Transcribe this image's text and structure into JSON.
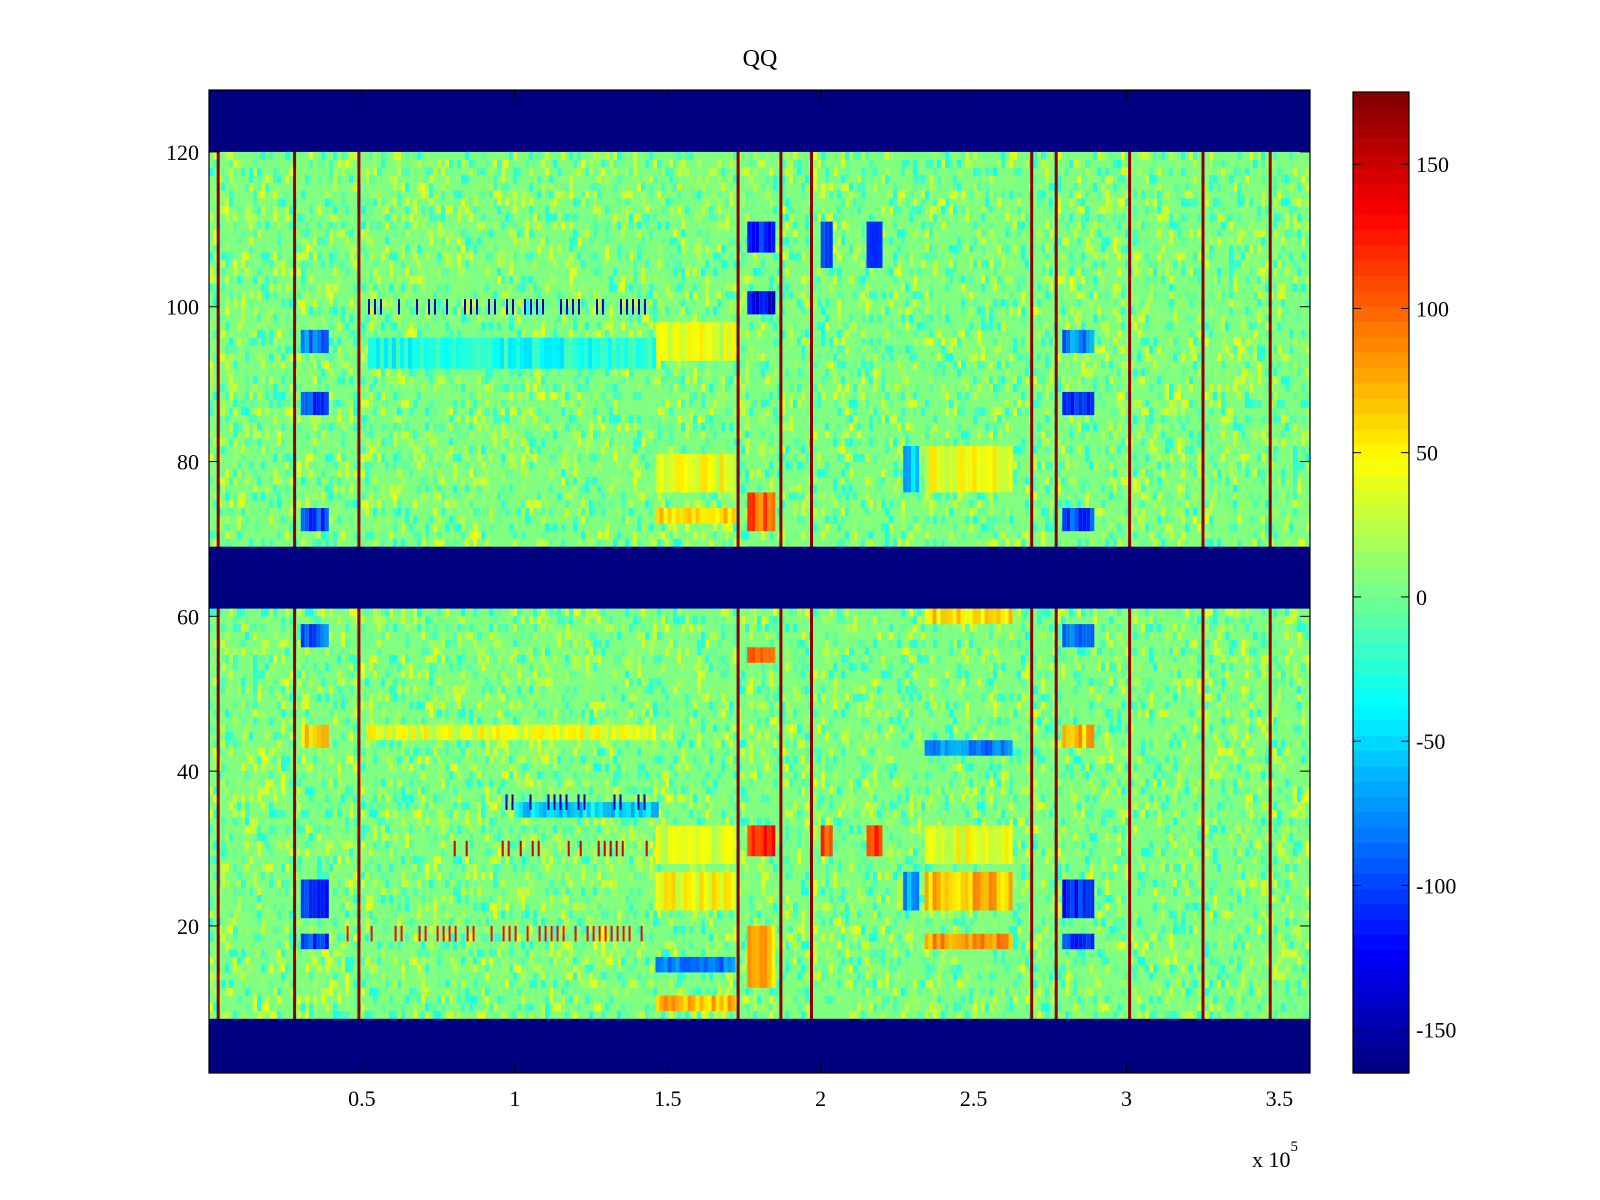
{
  "chart_data": {
    "type": "heatmap",
    "title": "QQ",
    "xlabel": "",
    "ylabel": "",
    "x_range": [
      0,
      360000
    ],
    "y_range": [
      1,
      128
    ],
    "x_ticks": [
      {
        "value": 50000,
        "label": "0.5"
      },
      {
        "value": 100000,
        "label": "1"
      },
      {
        "value": 150000,
        "label": "1.5"
      },
      {
        "value": 200000,
        "label": "2"
      },
      {
        "value": 250000,
        "label": "2.5"
      },
      {
        "value": 300000,
        "label": "3"
      },
      {
        "value": 350000,
        "label": "3.5"
      }
    ],
    "x_exponent": {
      "base": "x 10",
      "power": "5"
    },
    "y_ticks": [
      {
        "value": 20,
        "label": "20"
      },
      {
        "value": 40,
        "label": "40"
      },
      {
        "value": 60,
        "label": "60"
      },
      {
        "value": 80,
        "label": "80"
      },
      {
        "value": 100,
        "label": "100"
      },
      {
        "value": 120,
        "label": "120"
      }
    ],
    "colorbar": {
      "colormap": "jet",
      "range": [
        -165,
        175
      ],
      "ticks": [
        {
          "value": 150,
          "label": "150"
        },
        {
          "value": 100,
          "label": "100"
        },
        {
          "value": 50,
          "label": "50"
        },
        {
          "value": 0,
          "label": "0"
        },
        {
          "value": -50,
          "label": "-50"
        },
        {
          "value": -100,
          "label": "-100"
        },
        {
          "value": -150,
          "label": "-150"
        }
      ]
    },
    "background_value": 5,
    "masked_row_bands": [
      {
        "y_from": 1,
        "y_to": 8,
        "value": -165
      },
      {
        "y_from": 62,
        "y_to": 69,
        "value": -165
      },
      {
        "y_from": 121,
        "y_to": 128,
        "value": -165
      }
    ],
    "vertical_stripes": [
      {
        "x": 3000,
        "value": 170
      },
      {
        "x": 28000,
        "value": 170
      },
      {
        "x": 49000,
        "value": 170
      },
      {
        "x": 173000,
        "value": 170
      },
      {
        "x": 187000,
        "value": 170
      },
      {
        "x": 197000,
        "value": 170
      },
      {
        "x": 269000,
        "value": 170
      },
      {
        "x": 277000,
        "value": 170
      },
      {
        "x": 301000,
        "value": 170
      },
      {
        "x": 325000,
        "value": 170
      },
      {
        "x": 347000,
        "value": 170
      }
    ],
    "value_patches": [
      {
        "x0": 30000,
        "x1": 39000,
        "y0": 21,
        "y1": 26,
        "value": -110
      },
      {
        "x0": 30000,
        "x1": 39000,
        "y0": 17,
        "y1": 19,
        "value": -100
      },
      {
        "x0": 30000,
        "x1": 39000,
        "y0": 56,
        "y1": 59,
        "value": -90
      },
      {
        "x0": 30000,
        "x1": 39000,
        "y0": 71,
        "y1": 74,
        "value": -100
      },
      {
        "x0": 30000,
        "x1": 39000,
        "y0": 86,
        "y1": 89,
        "value": -100
      },
      {
        "x0": 30000,
        "x1": 39000,
        "y0": 94,
        "y1": 97,
        "value": -80
      },
      {
        "x0": 30000,
        "x1": 39000,
        "y0": 43,
        "y1": 46,
        "value": 70
      },
      {
        "x0": 279000,
        "x1": 289000,
        "y0": 21,
        "y1": 26,
        "value": -110
      },
      {
        "x0": 279000,
        "x1": 289000,
        "y0": 17,
        "y1": 19,
        "value": -100
      },
      {
        "x0": 279000,
        "x1": 289000,
        "y0": 56,
        "y1": 59,
        "value": -90
      },
      {
        "x0": 279000,
        "x1": 289000,
        "y0": 71,
        "y1": 74,
        "value": -100
      },
      {
        "x0": 279000,
        "x1": 289000,
        "y0": 86,
        "y1": 89,
        "value": -100
      },
      {
        "x0": 279000,
        "x1": 289000,
        "y0": 94,
        "y1": 97,
        "value": -80
      },
      {
        "x0": 279000,
        "x1": 289000,
        "y0": 43,
        "y1": 46,
        "value": 70
      },
      {
        "x0": 146000,
        "x1": 172000,
        "y0": 22,
        "y1": 27,
        "value": 45
      },
      {
        "x0": 146000,
        "x1": 172000,
        "y0": 28,
        "y1": 33,
        "value": 35
      },
      {
        "x0": 146000,
        "x1": 172000,
        "y0": 76,
        "y1": 81,
        "value": 40
      },
      {
        "x0": 146000,
        "x1": 172000,
        "y0": 72,
        "y1": 74,
        "value": 60
      },
      {
        "x0": 146000,
        "x1": 172000,
        "y0": 9,
        "y1": 11,
        "value": 70
      },
      {
        "x0": 146000,
        "x1": 172000,
        "y0": 93,
        "y1": 98,
        "value": 35
      },
      {
        "x0": 146000,
        "x1": 172000,
        "y0": 14,
        "y1": 16,
        "value": -80
      },
      {
        "x0": 176000,
        "x1": 185000,
        "y0": 29,
        "y1": 33,
        "value": 120
      },
      {
        "x0": 176000,
        "x1": 185000,
        "y0": 12,
        "y1": 20,
        "value": 70
      },
      {
        "x0": 176000,
        "x1": 185000,
        "y0": 107,
        "y1": 111,
        "value": -110
      },
      {
        "x0": 176000,
        "x1": 185000,
        "y0": 99,
        "y1": 102,
        "value": -130
      },
      {
        "x0": 176000,
        "x1": 185000,
        "y0": 71,
        "y1": 76,
        "value": 100
      },
      {
        "x0": 176000,
        "x1": 185000,
        "y0": 54,
        "y1": 56,
        "value": 90
      },
      {
        "x0": 176000,
        "x1": 185000,
        "y0": 65,
        "y1": 69,
        "value": -120
      },
      {
        "x0": 200000,
        "x1": 203000,
        "y0": 29,
        "y1": 33,
        "value": 110
      },
      {
        "x0": 215000,
        "x1": 219000,
        "y0": 29,
        "y1": 33,
        "value": 120
      },
      {
        "x0": 200000,
        "x1": 203000,
        "y0": 105,
        "y1": 111,
        "value": -110
      },
      {
        "x0": 215000,
        "x1": 219000,
        "y0": 105,
        "y1": 111,
        "value": -110
      },
      {
        "x0": 234000,
        "x1": 262000,
        "y0": 22,
        "y1": 27,
        "value": 70
      },
      {
        "x0": 234000,
        "x1": 262000,
        "y0": 28,
        "y1": 33,
        "value": 40
      },
      {
        "x0": 234000,
        "x1": 262000,
        "y0": 76,
        "y1": 82,
        "value": 40
      },
      {
        "x0": 234000,
        "x1": 262000,
        "y0": 42,
        "y1": 44,
        "value": -80
      },
      {
        "x0": 234000,
        "x1": 262000,
        "y0": 17,
        "y1": 19,
        "value": 80
      },
      {
        "x0": 234000,
        "x1": 262000,
        "y0": 59,
        "y1": 61,
        "value": 60
      },
      {
        "x0": 227000,
        "x1": 232000,
        "y0": 22,
        "y1": 27,
        "value": -70
      },
      {
        "x0": 227000,
        "x1": 232000,
        "y0": 76,
        "y1": 82,
        "value": -60
      },
      {
        "x0": 100000,
        "x1": 146000,
        "y0": 34,
        "y1": 36,
        "value": -50
      },
      {
        "x0": 52000,
        "x1": 146000,
        "y0": 44,
        "y1": 46,
        "value": 40
      },
      {
        "x0": 52000,
        "x1": 146000,
        "y0": 92,
        "y1": 96,
        "value": -30
      }
    ],
    "row_stripes": [
      {
        "y": 100,
        "x0": 52000,
        "x1": 146000,
        "value": -140
      },
      {
        "y": 30,
        "x0": 80000,
        "x1": 143000,
        "value": 150
      },
      {
        "y": 36,
        "x0": 95000,
        "x1": 143000,
        "value": -150
      },
      {
        "y": 19,
        "x0": 45000,
        "x1": 143000,
        "value": 130
      }
    ]
  }
}
